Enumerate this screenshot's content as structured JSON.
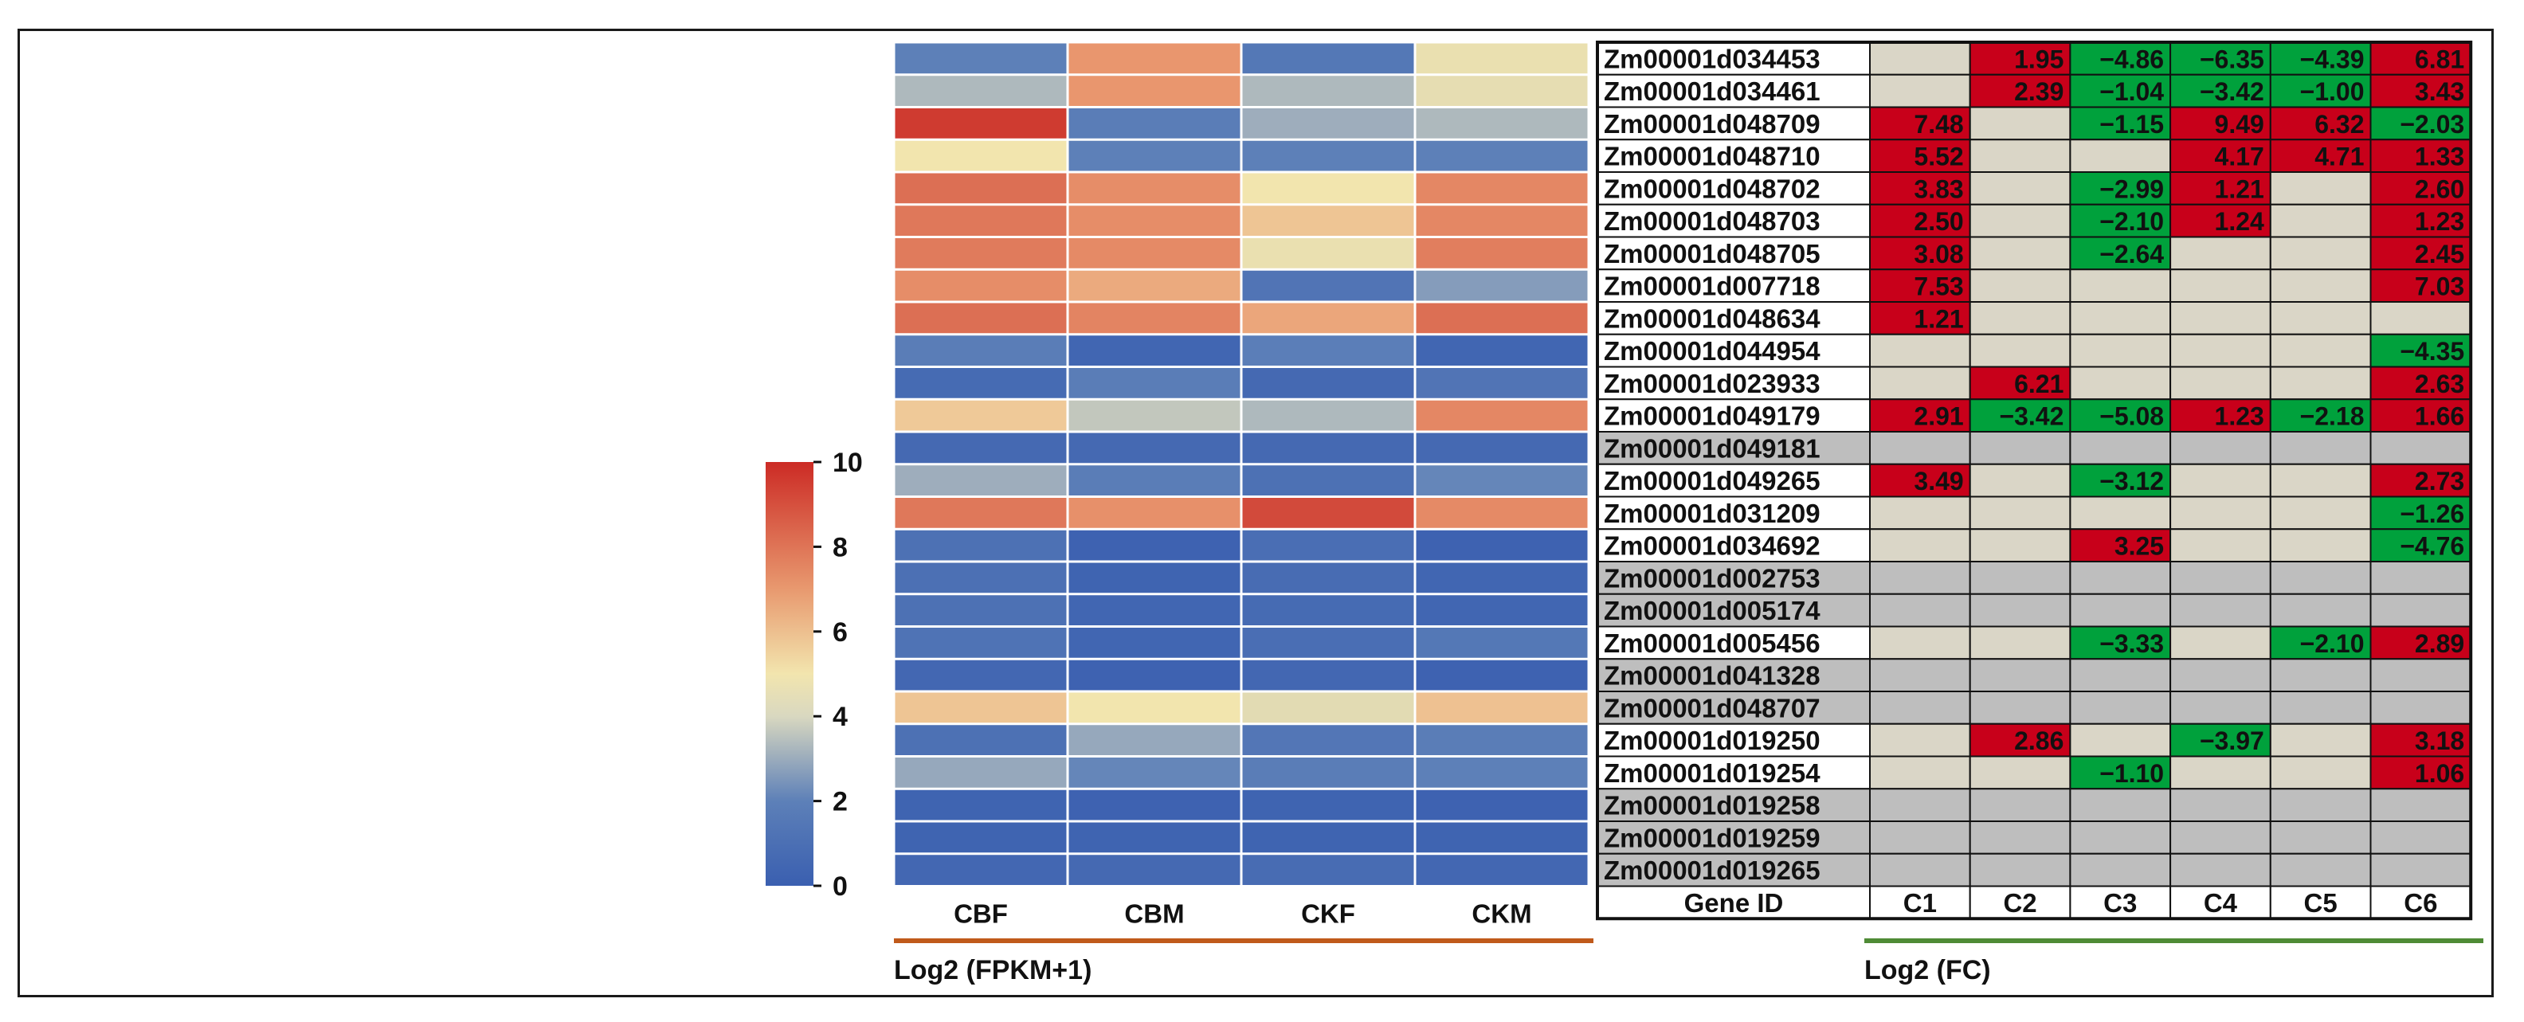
{
  "chart_data": [
    {
      "type": "heatmap",
      "columns": [
        "CBF",
        "CBM",
        "CKF",
        "CKM"
      ],
      "xlabel": "Log2 (FPKM+1)",
      "colorbar": {
        "min": 0,
        "max": 10,
        "ticks": [
          "10",
          "8",
          "6",
          "4",
          "2",
          "0"
        ]
      },
      "values": [
        [
          2.0,
          6.5,
          1.5,
          4.3
        ],
        [
          3.0,
          6.5,
          3.0,
          4.2
        ],
        [
          9.5,
          1.8,
          2.8,
          3.0
        ],
        [
          4.5,
          2.0,
          2.0,
          2.0
        ],
        [
          7.8,
          6.8,
          4.5,
          7.0
        ],
        [
          7.5,
          6.8,
          5.3,
          7.0
        ],
        [
          7.4,
          6.9,
          4.3,
          7.3
        ],
        [
          6.8,
          6.0,
          1.3,
          2.5
        ],
        [
          7.8,
          7.1,
          6.1,
          7.8
        ],
        [
          1.8,
          0.4,
          1.9,
          0.4
        ],
        [
          0.7,
          1.8,
          0.6,
          1.3
        ],
        [
          5.2,
          3.3,
          3.0,
          7.0
        ],
        [
          0.6,
          0.6,
          0.6,
          0.6
        ],
        [
          2.8,
          1.8,
          1.1,
          2.1
        ],
        [
          7.5,
          6.7,
          9.0,
          6.9
        ],
        [
          1.1,
          0.2,
          0.9,
          0.2
        ],
        [
          1.0,
          0.3,
          0.8,
          0.4
        ],
        [
          1.1,
          0.4,
          0.7,
          0.4
        ],
        [
          1.2,
          0.4,
          0.9,
          1.5
        ],
        [
          0.5,
          0.2,
          0.5,
          0.2
        ],
        [
          5.3,
          4.5,
          4.1,
          5.4
        ],
        [
          1.1,
          2.7,
          1.4,
          1.8
        ],
        [
          2.7,
          2.1,
          1.8,
          2.0
        ],
        [
          0.3,
          0.2,
          0.3,
          0.2
        ],
        [
          0.3,
          0.3,
          0.3,
          0.3
        ],
        [
          0.5,
          0.6,
          0.8,
          0.5
        ]
      ]
    },
    {
      "type": "table",
      "columns": [
        "Gene ID",
        "C1",
        "C2",
        "C3",
        "C4",
        "C5",
        "C6"
      ],
      "xlabel": "Log2 (FC)",
      "genes": [
        "Zm00001d034453",
        "Zm00001d034461",
        "Zm00001d048709",
        "Zm00001d048710",
        "Zm00001d048702",
        "Zm00001d048703",
        "Zm00001d048705",
        "Zm00001d007718",
        "Zm00001d048634",
        "Zm00001d044954",
        "Zm00001d023933",
        "Zm00001d049179",
        "Zm00001d049181",
        "Zm00001d049265",
        "Zm00001d031209",
        "Zm00001d034692",
        "Zm00001d002753",
        "Zm00001d005174",
        "Zm00001d005456",
        "Zm00001d041328",
        "Zm00001d048707",
        "Zm00001d019250",
        "Zm00001d019254",
        "Zm00001d019258",
        "Zm00001d019259",
        "Zm00001d019265"
      ],
      "gray_rows": [
        12,
        16,
        17,
        19,
        20,
        23,
        24,
        25
      ],
      "values": [
        [
          "",
          "1.95",
          "−4.86",
          "−6.35",
          "−4.39",
          "6.81"
        ],
        [
          "",
          "2.39",
          "−1.04",
          "−3.42",
          "−1.00",
          "3.43"
        ],
        [
          "7.48",
          "",
          "−1.15",
          "9.49",
          "6.32",
          "−2.03"
        ],
        [
          "5.52",
          "",
          "",
          "4.17",
          "4.71",
          "1.33"
        ],
        [
          "3.83",
          "",
          "−2.99",
          "1.21",
          "",
          "2.60"
        ],
        [
          "2.50",
          "",
          "−2.10",
          "1.24",
          "",
          "1.23"
        ],
        [
          "3.08",
          "",
          "−2.64",
          "",
          "",
          "2.45"
        ],
        [
          "7.53",
          "",
          "",
          "",
          "",
          "7.03"
        ],
        [
          "1.21",
          "",
          "",
          "",
          "",
          ""
        ],
        [
          "",
          "",
          "",
          "",
          "",
          "−4.35"
        ],
        [
          "",
          "6.21",
          "",
          "",
          "",
          "2.63"
        ],
        [
          "2.91",
          "−3.42",
          "−5.08",
          "1.23",
          "−2.18",
          "1.66"
        ],
        [
          "",
          "",
          "",
          "",
          "",
          ""
        ],
        [
          "3.49",
          "",
          "−3.12",
          "",
          "",
          "2.73"
        ],
        [
          "",
          "",
          "",
          "",
          "",
          "−1.26"
        ],
        [
          "",
          "",
          "3.25",
          "",
          "",
          "−4.76"
        ],
        [
          "",
          "",
          "",
          "",
          "",
          ""
        ],
        [
          "",
          "",
          "",
          "",
          "",
          ""
        ],
        [
          "",
          "",
          "−3.33",
          "",
          "−2.10",
          "2.89"
        ],
        [
          "",
          "",
          "",
          "",
          "",
          ""
        ],
        [
          "",
          "",
          "",
          "",
          "",
          ""
        ],
        [
          "",
          "2.86",
          "",
          "−3.97",
          "",
          "3.18"
        ],
        [
          "",
          "",
          "−1.10",
          "",
          "",
          "1.06"
        ],
        [
          "",
          "",
          "",
          "",
          "",
          ""
        ],
        [
          "",
          "",
          "",
          "",
          "",
          ""
        ],
        [
          "",
          "",
          "",
          "",
          "",
          ""
        ]
      ]
    }
  ],
  "colors": {
    "up_cell": "#c8001a",
    "down_cell": "#00a13c",
    "empty_cell": "#dad6c7",
    "gray_row": "#bebebe",
    "heatmap_low": "#3a5fb0",
    "heatmap_mid": "#f2e5ae",
    "heatmap_high": "#cc2b25",
    "left_underline": "#c05a1b",
    "right_underline": "#4f8b36"
  }
}
